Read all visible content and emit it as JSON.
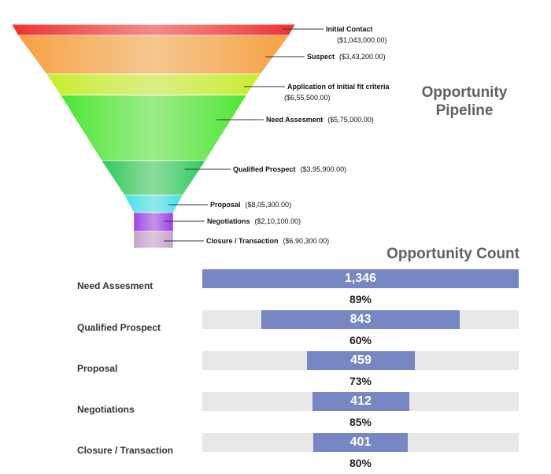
{
  "chart_data": [
    {
      "type": "funnel",
      "title": "Opportunity Pipeline",
      "stages": [
        {
          "label": "Initial Contact",
          "value_label": "($1,043,000.00)",
          "value": 1043000,
          "color": "#ef3030"
        },
        {
          "label": "Suspect",
          "value_label": "($3,43,200.00)",
          "value": 343200,
          "color": "#f7a040"
        },
        {
          "label": "Application of initial fit criteria",
          "value_label": "($6,55,500.00)",
          "value": 655500,
          "color": "#c8ec2c"
        },
        {
          "label": "Need Assesment",
          "value_label": "($5,75,000.00)",
          "value": 575000,
          "color": "#4ce632"
        },
        {
          "label": "Qualified Prospect",
          "value_label": "($3,95,900.00)",
          "value": 395900,
          "color": "#2ec85a"
        },
        {
          "label": "Proposal",
          "value_label": "($8,05,300.00)",
          "value": 805300,
          "color": "#40e0ec"
        },
        {
          "label": "Negotiations",
          "value_label": "($2,10,100.00)",
          "value": 210100,
          "color": "#9a40e8"
        },
        {
          "label": "Closure / Transaction",
          "value_label": "($6,90,300.00)",
          "value": 690300,
          "color": "#c8a0cc"
        }
      ]
    },
    {
      "type": "bar",
      "title": "Opportunity Count",
      "max": 1346,
      "rows": [
        {
          "label": "Need Assesment",
          "value": 1346,
          "value_label": "1,346",
          "pct_label": "89%"
        },
        {
          "label": "Qualified Prospect",
          "value": 843,
          "value_label": "843",
          "pct_label": "60%"
        },
        {
          "label": "Proposal",
          "value": 459,
          "value_label": "459",
          "pct_label": "73%"
        },
        {
          "label": "Negotiations",
          "value": 412,
          "value_label": "412",
          "pct_label": "85%"
        },
        {
          "label": "Closure / Transaction",
          "value": 401,
          "value_label": "401",
          "pct_label": "80%"
        }
      ]
    }
  ]
}
